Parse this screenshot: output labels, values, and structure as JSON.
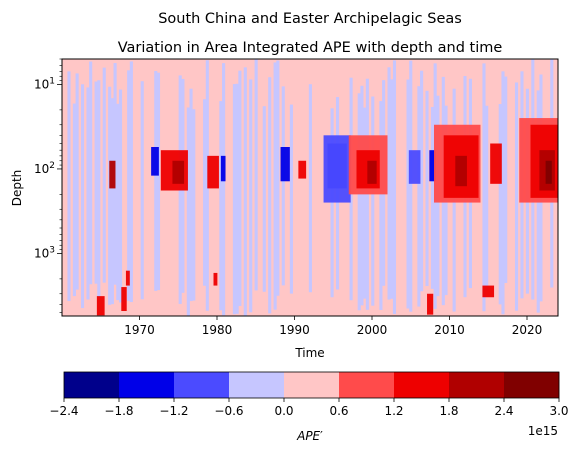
{
  "chart_data": {
    "type": "heatmap",
    "suptitle": "South China and Easter Archipelagic Seas",
    "title": "Variation in Area Integrated APE with depth and time",
    "xlabel": "Time",
    "ylabel": "Depth",
    "x_range": [
      1960,
      2024
    ],
    "x_ticks": [
      1970,
      1980,
      1990,
      2000,
      2010,
      2020
    ],
    "y_scale": "log",
    "y_inverted": true,
    "y_range": [
      5,
      5500
    ],
    "y_ticks": [
      {
        "value": 10,
        "base": "10",
        "exp": "1"
      },
      {
        "value": 100,
        "base": "10",
        "exp": "2"
      },
      {
        "value": 1000,
        "base": "10",
        "exp": "3"
      }
    ],
    "colorbar": {
      "label_main": "APE",
      "label_prime": "′",
      "levels": [
        -2.4,
        -1.8,
        -1.2,
        -0.6,
        0.0,
        0.6,
        1.2,
        1.8,
        2.4,
        3.0
      ],
      "tick_labels": [
        "−2.4",
        "−1.8",
        "−1.2",
        "−0.6",
        "0.0",
        "0.6",
        "1.2",
        "1.8",
        "2.4",
        "3.0"
      ],
      "colors": [
        "#00008b",
        "#0000e8",
        "#4b4bff",
        "#c6c6ff",
        "#ffc6c6",
        "#ff4b4b",
        "#ee0000",
        "#b00000",
        "#800000"
      ],
      "offset_text": "1e15"
    },
    "features": [
      {
        "level": 7,
        "x": 1966.5,
        "depth": 120,
        "w": 0.8,
        "d0": 80,
        "d1": 170
      },
      {
        "level": 1,
        "x": 1972.0,
        "depth": 90,
        "w": 1.0,
        "d0": 55,
        "d1": 120
      },
      {
        "level": 6,
        "x": 1974.5,
        "depth": 110,
        "w": 3.5,
        "d0": 60,
        "d1": 180
      },
      {
        "level": 7,
        "x": 1975.0,
        "depth": 110,
        "w": 1.5,
        "d0": 80,
        "d1": 150
      },
      {
        "level": 6,
        "x": 1979.5,
        "depth": 115,
        "w": 1.5,
        "d0": 70,
        "d1": 170
      },
      {
        "level": 1,
        "x": 1980.8,
        "depth": 100,
        "w": 0.6,
        "d0": 70,
        "d1": 140
      },
      {
        "level": 1,
        "x": 1988.8,
        "depth": 90,
        "w": 1.2,
        "d0": 55,
        "d1": 140
      },
      {
        "level": 6,
        "x": 1991.0,
        "depth": 100,
        "w": 1.0,
        "d0": 80,
        "d1": 130
      },
      {
        "level": 1,
        "x": 1995.5,
        "depth": 80,
        "w": 2.5,
        "d0": 50,
        "d1": 170
      },
      {
        "level": 2,
        "x": 1995.5,
        "depth": 100,
        "w": 3.5,
        "d0": 40,
        "d1": 250
      },
      {
        "level": 5,
        "x": 1999.5,
        "depth": 100,
        "w": 5.0,
        "d0": 40,
        "d1": 200
      },
      {
        "level": 6,
        "x": 1999.5,
        "depth": 110,
        "w": 3.0,
        "d0": 60,
        "d1": 170
      },
      {
        "level": 7,
        "x": 2000.0,
        "depth": 110,
        "w": 1.2,
        "d0": 80,
        "d1": 150
      },
      {
        "level": 2,
        "x": 2005.5,
        "depth": 90,
        "w": 1.5,
        "d0": 60,
        "d1": 150
      },
      {
        "level": 1,
        "x": 2007.8,
        "depth": 90,
        "w": 0.8,
        "d0": 60,
        "d1": 140
      },
      {
        "level": 5,
        "x": 2011.0,
        "depth": 100,
        "w": 6.0,
        "d0": 30,
        "d1": 250
      },
      {
        "level": 6,
        "x": 2011.5,
        "depth": 100,
        "w": 4.5,
        "d0": 40,
        "d1": 220
      },
      {
        "level": 7,
        "x": 2011.5,
        "depth": 110,
        "w": 1.5,
        "d0": 70,
        "d1": 160
      },
      {
        "level": 6,
        "x": 2016.0,
        "depth": 90,
        "w": 1.5,
        "d0": 50,
        "d1": 150
      },
      {
        "level": 5,
        "x": 2021.5,
        "depth": 100,
        "w": 5.0,
        "d0": 25,
        "d1": 250
      },
      {
        "level": 6,
        "x": 2022.2,
        "depth": 100,
        "w": 3.5,
        "d0": 30,
        "d1": 220
      },
      {
        "level": 7,
        "x": 2022.6,
        "depth": 110,
        "w": 2.0,
        "d0": 60,
        "d1": 180
      },
      {
        "level": 8,
        "x": 2022.8,
        "depth": 115,
        "w": 0.8,
        "d0": 80,
        "d1": 150
      },
      {
        "level": 6,
        "x": 1965.0,
        "depth": 4500,
        "w": 1.0,
        "d0": 3200,
        "d1": 5400
      },
      {
        "level": 6,
        "x": 1968.0,
        "depth": 3500,
        "w": 0.7,
        "d0": 2500,
        "d1": 4800
      },
      {
        "level": 6,
        "x": 1968.5,
        "depth": 2000,
        "w": 0.5,
        "d0": 1600,
        "d1": 2400
      },
      {
        "level": 6,
        "x": 1979.8,
        "depth": 2000,
        "w": 0.5,
        "d0": 1700,
        "d1": 2400
      },
      {
        "level": 6,
        "x": 2007.5,
        "depth": 4300,
        "w": 0.8,
        "d0": 3000,
        "d1": 5300
      },
      {
        "level": 6,
        "x": 2015.0,
        "depth": 2800,
        "w": 1.5,
        "d0": 2400,
        "d1": 3300
      }
    ]
  }
}
